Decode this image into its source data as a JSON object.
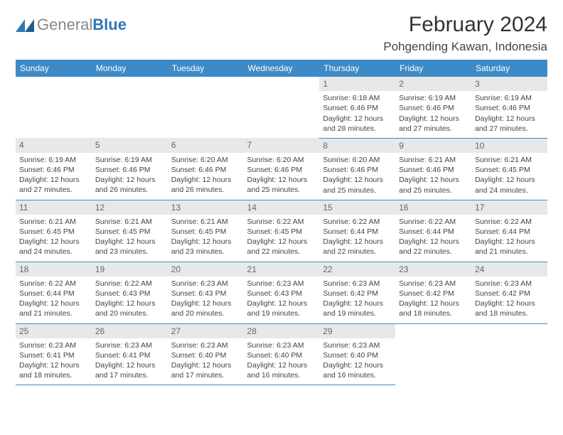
{
  "logo": {
    "prefix": "General",
    "suffix": "Blue"
  },
  "title": "February 2024",
  "location": "Pohgending Kawan, Indonesia",
  "colors": {
    "header_bg": "#3d8ac7",
    "header_fg": "#ffffff",
    "daynum_bg": "#e8e8e8",
    "border": "#3d8ac7",
    "background": "#ffffff"
  },
  "weekdays": [
    "Sunday",
    "Monday",
    "Tuesday",
    "Wednesday",
    "Thursday",
    "Friday",
    "Saturday"
  ],
  "grid": [
    [
      {
        "empty": true
      },
      {
        "empty": true
      },
      {
        "empty": true
      },
      {
        "empty": true
      },
      {
        "day": "1",
        "sunrise": "Sunrise: 6:18 AM",
        "sunset": "Sunset: 6:46 PM",
        "daylight1": "Daylight: 12 hours",
        "daylight2": "and 28 minutes."
      },
      {
        "day": "2",
        "sunrise": "Sunrise: 6:19 AM",
        "sunset": "Sunset: 6:46 PM",
        "daylight1": "Daylight: 12 hours",
        "daylight2": "and 27 minutes."
      },
      {
        "day": "3",
        "sunrise": "Sunrise: 6:19 AM",
        "sunset": "Sunset: 6:46 PM",
        "daylight1": "Daylight: 12 hours",
        "daylight2": "and 27 minutes."
      }
    ],
    [
      {
        "day": "4",
        "sunrise": "Sunrise: 6:19 AM",
        "sunset": "Sunset: 6:46 PM",
        "daylight1": "Daylight: 12 hours",
        "daylight2": "and 27 minutes."
      },
      {
        "day": "5",
        "sunrise": "Sunrise: 6:19 AM",
        "sunset": "Sunset: 6:46 PM",
        "daylight1": "Daylight: 12 hours",
        "daylight2": "and 26 minutes."
      },
      {
        "day": "6",
        "sunrise": "Sunrise: 6:20 AM",
        "sunset": "Sunset: 6:46 PM",
        "daylight1": "Daylight: 12 hours",
        "daylight2": "and 26 minutes."
      },
      {
        "day": "7",
        "sunrise": "Sunrise: 6:20 AM",
        "sunset": "Sunset: 6:46 PM",
        "daylight1": "Daylight: 12 hours",
        "daylight2": "and 25 minutes."
      },
      {
        "day": "8",
        "sunrise": "Sunrise: 6:20 AM",
        "sunset": "Sunset: 6:46 PM",
        "daylight1": "Daylight: 12 hours",
        "daylight2": "and 25 minutes."
      },
      {
        "day": "9",
        "sunrise": "Sunrise: 6:21 AM",
        "sunset": "Sunset: 6:46 PM",
        "daylight1": "Daylight: 12 hours",
        "daylight2": "and 25 minutes."
      },
      {
        "day": "10",
        "sunrise": "Sunrise: 6:21 AM",
        "sunset": "Sunset: 6:45 PM",
        "daylight1": "Daylight: 12 hours",
        "daylight2": "and 24 minutes."
      }
    ],
    [
      {
        "day": "11",
        "sunrise": "Sunrise: 6:21 AM",
        "sunset": "Sunset: 6:45 PM",
        "daylight1": "Daylight: 12 hours",
        "daylight2": "and 24 minutes."
      },
      {
        "day": "12",
        "sunrise": "Sunrise: 6:21 AM",
        "sunset": "Sunset: 6:45 PM",
        "daylight1": "Daylight: 12 hours",
        "daylight2": "and 23 minutes."
      },
      {
        "day": "13",
        "sunrise": "Sunrise: 6:21 AM",
        "sunset": "Sunset: 6:45 PM",
        "daylight1": "Daylight: 12 hours",
        "daylight2": "and 23 minutes."
      },
      {
        "day": "14",
        "sunrise": "Sunrise: 6:22 AM",
        "sunset": "Sunset: 6:45 PM",
        "daylight1": "Daylight: 12 hours",
        "daylight2": "and 22 minutes."
      },
      {
        "day": "15",
        "sunrise": "Sunrise: 6:22 AM",
        "sunset": "Sunset: 6:44 PM",
        "daylight1": "Daylight: 12 hours",
        "daylight2": "and 22 minutes."
      },
      {
        "day": "16",
        "sunrise": "Sunrise: 6:22 AM",
        "sunset": "Sunset: 6:44 PM",
        "daylight1": "Daylight: 12 hours",
        "daylight2": "and 22 minutes."
      },
      {
        "day": "17",
        "sunrise": "Sunrise: 6:22 AM",
        "sunset": "Sunset: 6:44 PM",
        "daylight1": "Daylight: 12 hours",
        "daylight2": "and 21 minutes."
      }
    ],
    [
      {
        "day": "18",
        "sunrise": "Sunrise: 6:22 AM",
        "sunset": "Sunset: 6:44 PM",
        "daylight1": "Daylight: 12 hours",
        "daylight2": "and 21 minutes."
      },
      {
        "day": "19",
        "sunrise": "Sunrise: 6:22 AM",
        "sunset": "Sunset: 6:43 PM",
        "daylight1": "Daylight: 12 hours",
        "daylight2": "and 20 minutes."
      },
      {
        "day": "20",
        "sunrise": "Sunrise: 6:23 AM",
        "sunset": "Sunset: 6:43 PM",
        "daylight1": "Daylight: 12 hours",
        "daylight2": "and 20 minutes."
      },
      {
        "day": "21",
        "sunrise": "Sunrise: 6:23 AM",
        "sunset": "Sunset: 6:43 PM",
        "daylight1": "Daylight: 12 hours",
        "daylight2": "and 19 minutes."
      },
      {
        "day": "22",
        "sunrise": "Sunrise: 6:23 AM",
        "sunset": "Sunset: 6:42 PM",
        "daylight1": "Daylight: 12 hours",
        "daylight2": "and 19 minutes."
      },
      {
        "day": "23",
        "sunrise": "Sunrise: 6:23 AM",
        "sunset": "Sunset: 6:42 PM",
        "daylight1": "Daylight: 12 hours",
        "daylight2": "and 18 minutes."
      },
      {
        "day": "24",
        "sunrise": "Sunrise: 6:23 AM",
        "sunset": "Sunset: 6:42 PM",
        "daylight1": "Daylight: 12 hours",
        "daylight2": "and 18 minutes."
      }
    ],
    [
      {
        "day": "25",
        "sunrise": "Sunrise: 6:23 AM",
        "sunset": "Sunset: 6:41 PM",
        "daylight1": "Daylight: 12 hours",
        "daylight2": "and 18 minutes."
      },
      {
        "day": "26",
        "sunrise": "Sunrise: 6:23 AM",
        "sunset": "Sunset: 6:41 PM",
        "daylight1": "Daylight: 12 hours",
        "daylight2": "and 17 minutes."
      },
      {
        "day": "27",
        "sunrise": "Sunrise: 6:23 AM",
        "sunset": "Sunset: 6:40 PM",
        "daylight1": "Daylight: 12 hours",
        "daylight2": "and 17 minutes."
      },
      {
        "day": "28",
        "sunrise": "Sunrise: 6:23 AM",
        "sunset": "Sunset: 6:40 PM",
        "daylight1": "Daylight: 12 hours",
        "daylight2": "and 16 minutes."
      },
      {
        "day": "29",
        "sunrise": "Sunrise: 6:23 AM",
        "sunset": "Sunset: 6:40 PM",
        "daylight1": "Daylight: 12 hours",
        "daylight2": "and 16 minutes."
      },
      {
        "empty": true
      },
      {
        "empty": true
      }
    ]
  ]
}
